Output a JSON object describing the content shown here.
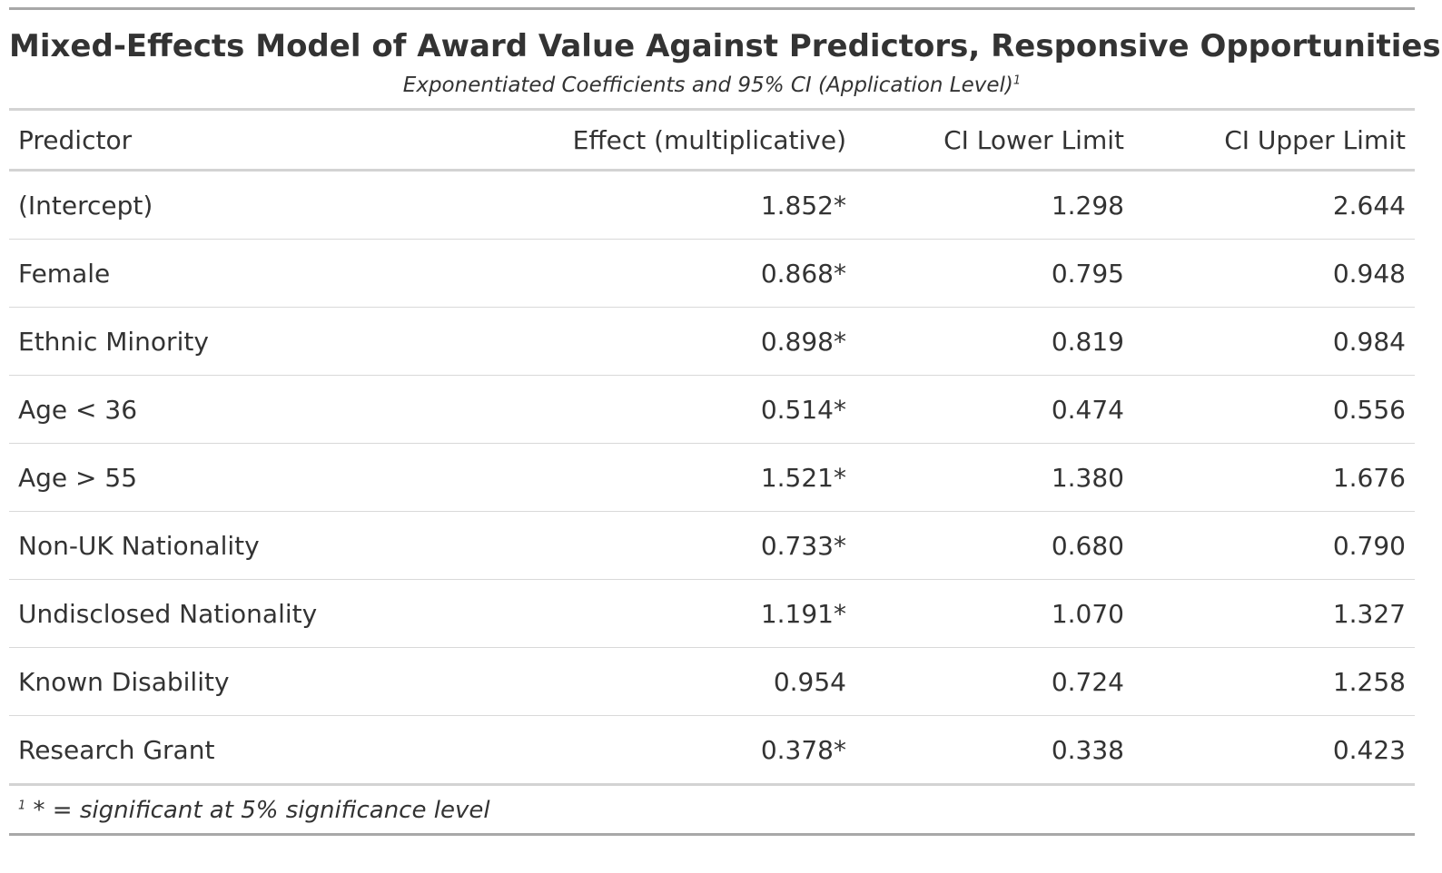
{
  "title": "Mixed-Effects Model of Award Value Against Predictors, Responsive Opportunities",
  "subtitle": "Exponentiated Coefficients and 95% CI (Application Level)",
  "subtitle_footnote_mark": "1",
  "columns": [
    "Predictor",
    "Effect (multiplicative)",
    "CI Lower Limit",
    "CI Upper Limit"
  ],
  "rows": [
    [
      "(Intercept)",
      "1.852*",
      "1.298",
      "2.644"
    ],
    [
      "Female",
      "0.868*",
      "0.795",
      "0.948"
    ],
    [
      "Ethnic Minority",
      "0.898*",
      "0.819",
      "0.984"
    ],
    [
      "Age < 36",
      "0.514*",
      "0.474",
      "0.556"
    ],
    [
      "Age > 55",
      "1.521*",
      "1.380",
      "1.676"
    ],
    [
      "Non-UK Nationality",
      "0.733*",
      "0.680",
      "0.790"
    ],
    [
      "Undisclosed Nationality",
      "1.191*",
      "1.070",
      "1.327"
    ],
    [
      "Known Disability",
      "0.954",
      "0.724",
      "1.258"
    ],
    [
      "Research Grant",
      "0.378*",
      "0.338",
      "0.423"
    ]
  ],
  "footnote": {
    "mark": "1",
    "text": "* = significant at 5% significance level"
  },
  "colors": {
    "text": "#333333",
    "outer_rule": "#a8a8a8",
    "inner_rule": "#d3d3d3",
    "row_rule": "#d9d9d9"
  }
}
